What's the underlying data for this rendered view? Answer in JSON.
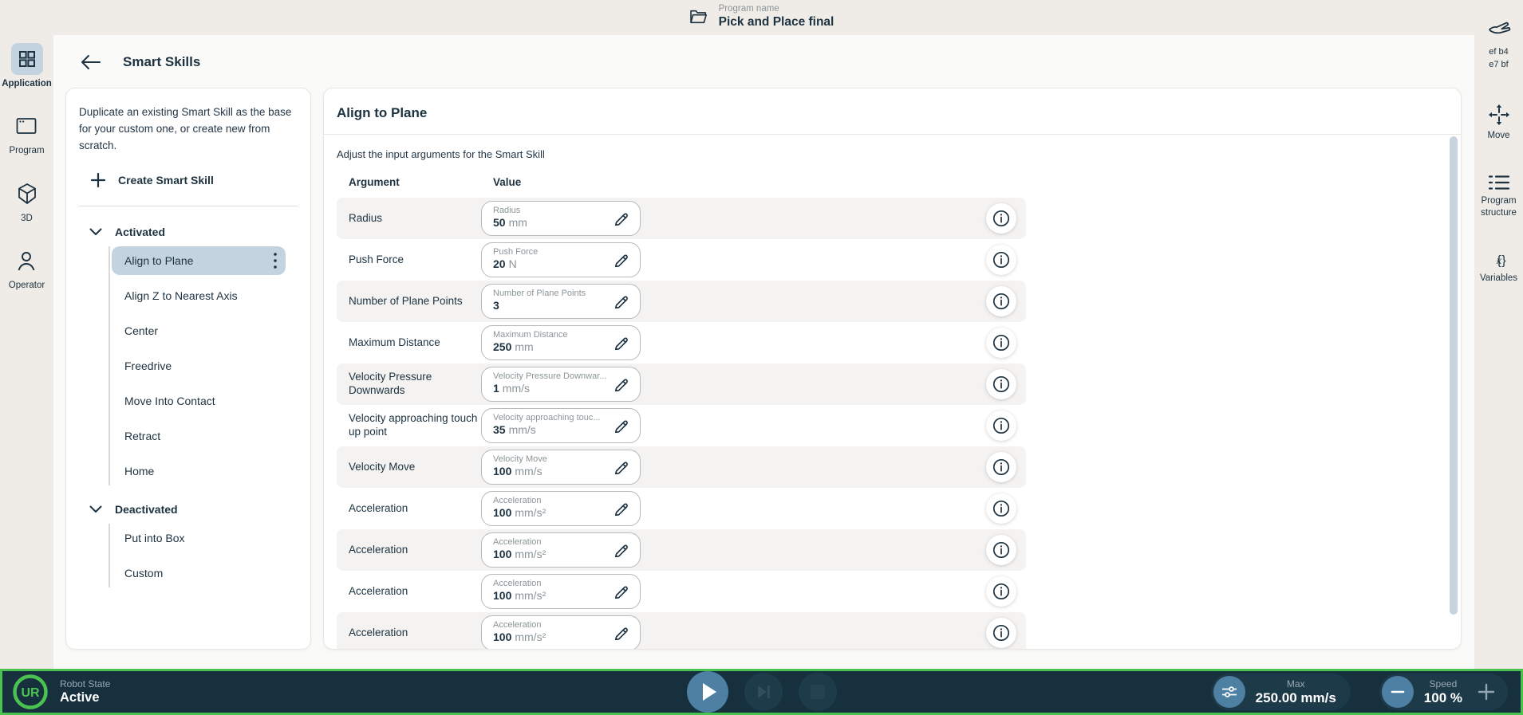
{
  "top_bar": {
    "program_name_label": "Program name",
    "program_name": "Pick and Place final"
  },
  "left_nav": [
    {
      "label": "Application",
      "icon": "app-grid",
      "active": true
    },
    {
      "label": "Program",
      "icon": "program-window",
      "active": false
    },
    {
      "label": "3D",
      "icon": "cube-3d",
      "active": false
    },
    {
      "label": "Operator",
      "icon": "operator-person",
      "active": false
    }
  ],
  "right_nav": {
    "badge_line1": "ef b4",
    "badge_line2": "e7 bf",
    "items": [
      {
        "label": "Move",
        "icon": "move-arrows"
      },
      {
        "label": "Program structure",
        "icon": "program-structure"
      },
      {
        "label": "Variables",
        "icon": "variables"
      }
    ]
  },
  "page": {
    "title": "Smart Skills"
  },
  "skills_panel": {
    "description": "Duplicate an existing Smart Skill as the base for your custom one, or create new from scratch.",
    "create_button": "Create Smart Skill",
    "groups": [
      {
        "label": "Activated",
        "selected": "Align to Plane",
        "items": [
          "Align to Plane",
          "Align Z to Nearest Axis",
          "Center",
          "Freedrive",
          "Move Into Contact",
          "Retract",
          "Home"
        ]
      },
      {
        "label": "Deactivated",
        "selected": null,
        "items": [
          "Put into Box",
          "Custom"
        ]
      }
    ]
  },
  "detail_panel": {
    "title": "Align to Plane",
    "subtitle": "Adjust the input arguments for the Smart Skill",
    "columns": {
      "argument": "Argument",
      "value": "Value"
    },
    "rows": [
      {
        "argument": "Radius",
        "field_label": "Radius",
        "value": "50",
        "unit": "mm"
      },
      {
        "argument": "Push Force",
        "field_label": "Push Force",
        "value": "20",
        "unit": "N"
      },
      {
        "argument": "Number of Plane Points",
        "field_label": "Number of Plane Points",
        "value": "3",
        "unit": ""
      },
      {
        "argument": "Maximum Distance",
        "field_label": "Maximum Distance",
        "value": "250",
        "unit": "mm"
      },
      {
        "argument": "Velocity Pressure Downwards",
        "field_label": "Velocity Pressure Downwar...",
        "value": "1",
        "unit": "mm/s"
      },
      {
        "argument": "Velocity approaching touch up point",
        "field_label": "Velocity approaching touc...",
        "value": "35",
        "unit": "mm/s"
      },
      {
        "argument": "Velocity Move",
        "field_label": "Velocity Move",
        "value": "100",
        "unit": "mm/s"
      },
      {
        "argument": "Acceleration",
        "field_label": "Acceleration",
        "value": "100",
        "unit": "mm/s²"
      },
      {
        "argument": "Acceleration",
        "field_label": "Acceleration",
        "value": "100",
        "unit": "mm/s²"
      },
      {
        "argument": "Acceleration",
        "field_label": "Acceleration",
        "value": "100",
        "unit": "mm/s²"
      },
      {
        "argument": "Acceleration",
        "field_label": "Acceleration",
        "value": "100",
        "unit": "mm/s²"
      }
    ]
  },
  "bottom_bar": {
    "robot_state_label": "Robot State",
    "robot_state_value": "Active",
    "max_label": "Max",
    "max_value": "250.00 mm/s",
    "speed_label": "Speed",
    "speed_value": "100 %"
  },
  "colors": {
    "accent_green": "#4bc351",
    "steel_blue": "#4e80a4",
    "selected_blue": "#c3d4e0",
    "bar_navy": "#16303d",
    "rail_beige": "#efece7"
  }
}
